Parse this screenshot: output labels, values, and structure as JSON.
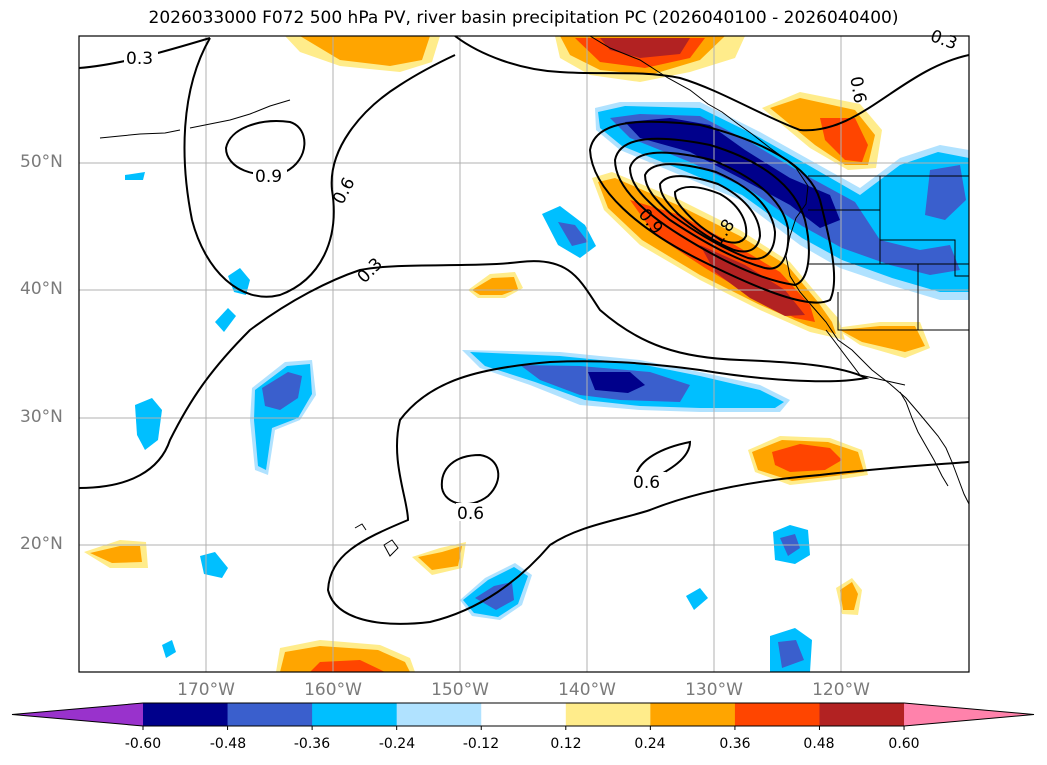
{
  "title": "2026033000 F072 500 hPa PV, river basin precipitation PC (2026040100 - 2026040400)",
  "lat_labels": [
    "50°N",
    "40°N",
    "30°N",
    "20°N"
  ],
  "lon_labels": [
    "170°W",
    "160°W",
    "150°W",
    "140°W",
    "130°W",
    "120°W"
  ],
  "contour_labels": [
    "0.3",
    "0.9",
    "0.6",
    "0.3",
    "0.9",
    "1.8",
    "0.6",
    "0.6",
    "0.6",
    "0.3"
  ],
  "colorbar": {
    "ticks": [
      "-0.60",
      "-0.48",
      "-0.36",
      "-0.24",
      "-0.12",
      "0.12",
      "0.24",
      "0.36",
      "0.48",
      "0.60"
    ],
    "colors": [
      "#9932cc",
      "#00008b",
      "#3a5fcd",
      "#00bfff",
      "#b0e2ff",
      "#ffffff",
      "#ffec8b",
      "#ffa500",
      "#ff4500",
      "#b22222",
      "#ff82ab"
    ]
  }
}
